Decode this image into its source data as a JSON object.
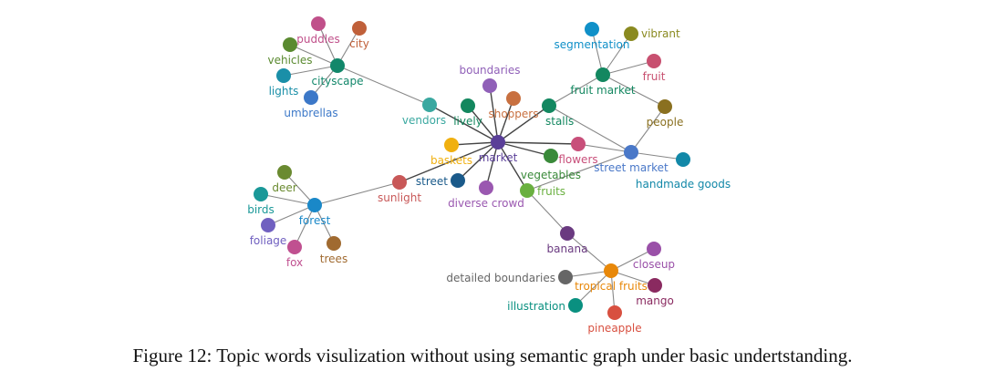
{
  "figure": {
    "caption": "Figure 12: Topic words visulization without using semantic graph under basic undertstanding."
  },
  "nodes": [
    {
      "id": "cityscape",
      "label": "cityscape",
      "color": "#12876a"
    },
    {
      "id": "puddles",
      "label": "puddles",
      "color": "#c0508a"
    },
    {
      "id": "city",
      "label": "city",
      "color": "#c0603a"
    },
    {
      "id": "vehicles",
      "label": "vehicles",
      "color": "#5a8a30"
    },
    {
      "id": "lights",
      "label": "lights",
      "color": "#1a8fa8"
    },
    {
      "id": "umbrellas",
      "label": "umbrellas",
      "color": "#3c78c8"
    },
    {
      "id": "vendors",
      "label": "vendors",
      "color": "#3aa8a0"
    },
    {
      "id": "lively",
      "label": "lively",
      "color": "#13875e"
    },
    {
      "id": "boundaries",
      "label": "boundaries",
      "color": "#9060b8"
    },
    {
      "id": "shoppers",
      "label": "shoppers",
      "color": "#c87040"
    },
    {
      "id": "stalls",
      "label": "stalls",
      "color": "#138760"
    },
    {
      "id": "market",
      "label": "market",
      "color": "#5a3f98"
    },
    {
      "id": "baskets",
      "label": "baskets",
      "color": "#f0b010"
    },
    {
      "id": "flowers",
      "label": "flowers",
      "color": "#c84f7a"
    },
    {
      "id": "vegetables",
      "label": "vegetables",
      "color": "#3a8a3a"
    },
    {
      "id": "street_market",
      "label": "street market",
      "color": "#4a78c8"
    },
    {
      "id": "handmade_goods",
      "label": "handmade goods",
      "color": "#1288a8"
    },
    {
      "id": "street",
      "label": "street",
      "color": "#1a5a8a"
    },
    {
      "id": "diverse_crowd",
      "label": "diverse crowd",
      "color": "#9a58b0"
    },
    {
      "id": "fruits",
      "label": "fruits",
      "color": "#6ab040"
    },
    {
      "id": "fruit_market",
      "label": "fruit market",
      "color": "#138760"
    },
    {
      "id": "segmentation",
      "label": "segmentation",
      "color": "#1090c8"
    },
    {
      "id": "vibrant",
      "label": "vibrant",
      "color": "#8a8a20"
    },
    {
      "id": "fruit",
      "label": "fruit",
      "color": "#c85070"
    },
    {
      "id": "people",
      "label": "people",
      "color": "#8a7020"
    },
    {
      "id": "sunlight",
      "label": "sunlight",
      "color": "#c85858"
    },
    {
      "id": "forest",
      "label": "forest",
      "color": "#1a88c8"
    },
    {
      "id": "deer",
      "label": "deer",
      "color": "#6a8a30"
    },
    {
      "id": "birds",
      "label": "birds",
      "color": "#1a9898"
    },
    {
      "id": "foliage",
      "label": "foliage",
      "color": "#7060c0"
    },
    {
      "id": "fox",
      "label": "fox",
      "color": "#c05090"
    },
    {
      "id": "trees",
      "label": "trees",
      "color": "#a06a30"
    },
    {
      "id": "banana",
      "label": "banana",
      "color": "#6a3a80"
    },
    {
      "id": "tropical_fruits",
      "label": "tropical fruits",
      "color": "#e8880a"
    },
    {
      "id": "closeup",
      "label": "closeup",
      "color": "#9a50a8"
    },
    {
      "id": "detailed_boundaries",
      "label": "detailed boundaries",
      "color": "#666666"
    },
    {
      "id": "mango",
      "label": "mango",
      "color": "#8a2a60"
    },
    {
      "id": "illustration",
      "label": "illustration",
      "color": "#0a9080"
    },
    {
      "id": "pineapple",
      "label": "pineapple",
      "color": "#d85040"
    }
  ],
  "edges": [
    [
      "cityscape",
      "puddles"
    ],
    [
      "cityscape",
      "city"
    ],
    [
      "cityscape",
      "vehicles"
    ],
    [
      "cityscape",
      "lights"
    ],
    [
      "cityscape",
      "umbrellas"
    ],
    [
      "cityscape",
      "vendors"
    ],
    [
      "vendors",
      "market"
    ],
    [
      "market",
      "lively"
    ],
    [
      "market",
      "boundaries"
    ],
    [
      "market",
      "shoppers"
    ],
    [
      "market",
      "stalls"
    ],
    [
      "market",
      "baskets"
    ],
    [
      "market",
      "flowers"
    ],
    [
      "market",
      "vegetables"
    ],
    [
      "market",
      "street"
    ],
    [
      "market",
      "diverse_crowd"
    ],
    [
      "market",
      "fruits"
    ],
    [
      "market",
      "sunlight"
    ],
    [
      "stalls",
      "fruit_market"
    ],
    [
      "stalls",
      "street_market"
    ],
    [
      "fruit_market",
      "segmentation"
    ],
    [
      "fruit_market",
      "vibrant"
    ],
    [
      "fruit_market",
      "fruit"
    ],
    [
      "fruit_market",
      "people"
    ],
    [
      "street_market",
      "people"
    ],
    [
      "street_market",
      "handmade_goods"
    ],
    [
      "street_market",
      "flowers"
    ],
    [
      "street_market",
      "fruits"
    ],
    [
      "fruits",
      "banana"
    ],
    [
      "banana",
      "tropical_fruits"
    ],
    [
      "tropical_fruits",
      "closeup"
    ],
    [
      "tropical_fruits",
      "detailed_boundaries"
    ],
    [
      "tropical_fruits",
      "mango"
    ],
    [
      "tropical_fruits",
      "illustration"
    ],
    [
      "tropical_fruits",
      "pineapple"
    ],
    [
      "forest",
      "deer"
    ],
    [
      "forest",
      "birds"
    ],
    [
      "forest",
      "foliage"
    ],
    [
      "forest",
      "fox"
    ],
    [
      "forest",
      "trees"
    ],
    [
      "forest",
      "sunlight"
    ]
  ]
}
